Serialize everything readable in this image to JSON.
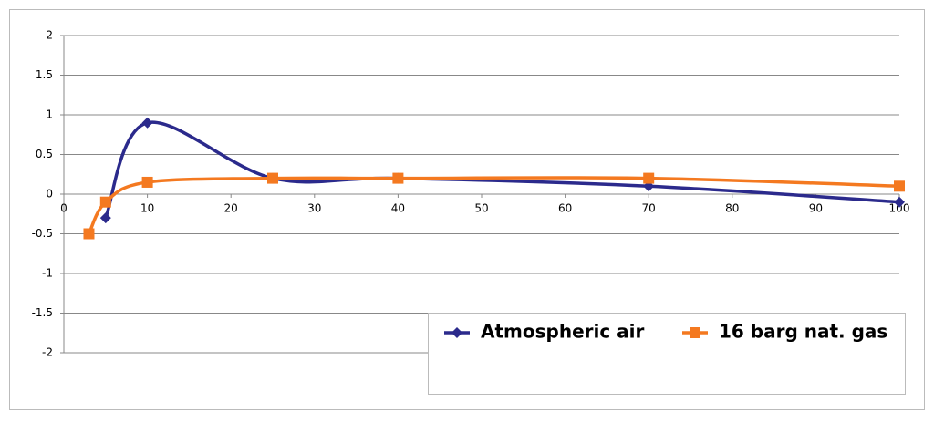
{
  "chart_data": {
    "type": "line",
    "xlim": [
      0,
      100
    ],
    "xticks": [
      0,
      10,
      20,
      30,
      40,
      50,
      60,
      70,
      80,
      90,
      100
    ],
    "ylim": [
      -2,
      2
    ],
    "yticks": [
      2,
      1.5,
      1,
      0.5,
      0,
      -0.5,
      -1,
      -1.5,
      -2
    ],
    "grid": true,
    "smooth": true,
    "legend": "lower right",
    "series": [
      {
        "name": "Atmospheric air",
        "color": "#2b2a8c",
        "marker": "diamond",
        "x": [
          5,
          10,
          25,
          40,
          70,
          100
        ],
        "values": [
          -0.3,
          0.9,
          0.2,
          0.2,
          0.1,
          -0.1
        ]
      },
      {
        "name": "16 barg nat. gas",
        "color": "#f47920",
        "marker": "square",
        "x": [
          3,
          5,
          10,
          25,
          40,
          70,
          100
        ],
        "values": [
          -0.5,
          -0.1,
          0.15,
          0.2,
          0.2,
          0.2,
          0.1
        ]
      }
    ]
  }
}
